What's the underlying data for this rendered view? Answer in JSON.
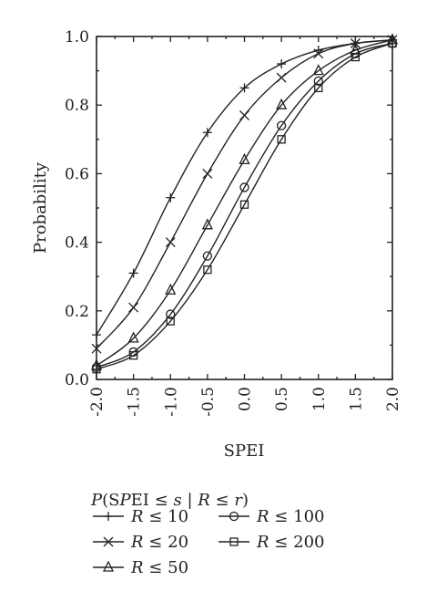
{
  "chart_data": {
    "type": "line",
    "xlabel": "SPEI",
    "ylabel": "Probability",
    "xlim": [
      -2.0,
      2.0
    ],
    "ylim": [
      0.0,
      1.0
    ],
    "x": [
      -2.0,
      -1.5,
      -1.0,
      -0.5,
      0.0,
      0.5,
      1.0,
      1.5,
      2.0
    ],
    "x_ticks": [
      "-2.0",
      "-1.5",
      "-1.0",
      "-0.5",
      "0.0",
      "0.5",
      "1.0",
      "1.5",
      "2.0"
    ],
    "y_ticks": [
      "0.0",
      "0.2",
      "0.4",
      "0.6",
      "0.8",
      "1.0"
    ],
    "grid": false,
    "legend": {
      "title": "P(SPEI ≤ s | R ≤ r)",
      "position": "bottom"
    },
    "series": [
      {
        "name": "R ≤ 10",
        "marker": "plus",
        "values": [
          0.13,
          0.31,
          0.53,
          0.72,
          0.85,
          0.92,
          0.96,
          0.98,
          0.99
        ]
      },
      {
        "name": "R ≤ 20",
        "marker": "cross",
        "values": [
          0.09,
          0.21,
          0.4,
          0.6,
          0.77,
          0.88,
          0.95,
          0.98,
          0.99
        ]
      },
      {
        "name": "R ≤ 50",
        "marker": "triangle",
        "values": [
          0.04,
          0.12,
          0.26,
          0.45,
          0.64,
          0.8,
          0.9,
          0.96,
          0.99
        ]
      },
      {
        "name": "R ≤ 100",
        "marker": "circle",
        "values": [
          0.035,
          0.08,
          0.19,
          0.36,
          0.56,
          0.74,
          0.87,
          0.95,
          0.98
        ]
      },
      {
        "name": "R ≤ 200",
        "marker": "square",
        "values": [
          0.03,
          0.07,
          0.17,
          0.32,
          0.51,
          0.7,
          0.85,
          0.94,
          0.98
        ]
      }
    ]
  }
}
